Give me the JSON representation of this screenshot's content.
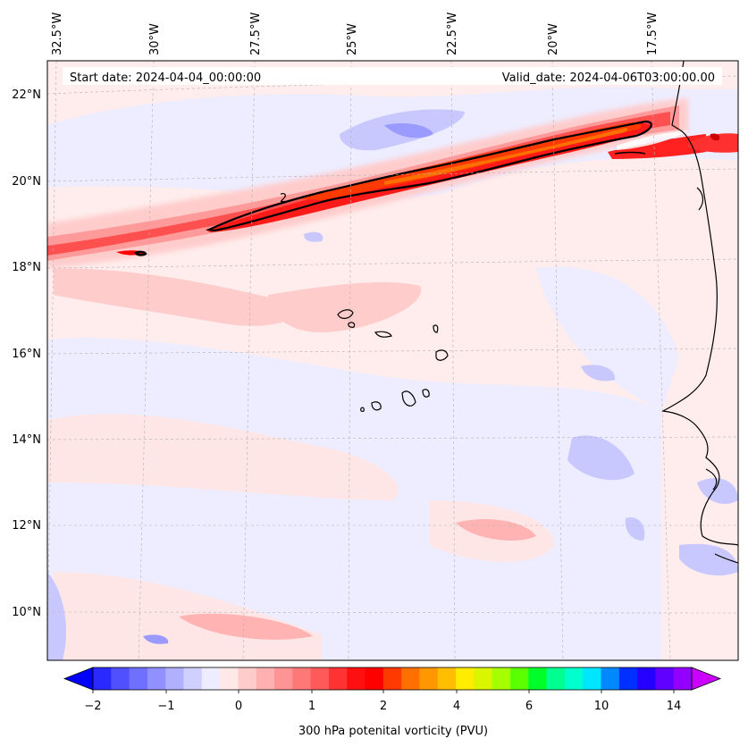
{
  "map": {
    "start_date": "Start date: 2024-04-04_00:00:00",
    "valid_date": "Valid_date: 2024-04-06T03:00:00.00",
    "contour_label": "2",
    "lon_labels": [
      "32.5°W",
      "30°W",
      "27.5°W",
      "25°W",
      "22.5°W",
      "20°W",
      "17.5°W"
    ],
    "lat_labels": [
      "22°N",
      "20°N",
      "18°N",
      "16°N",
      "14°N",
      "12°N",
      "10°N"
    ]
  },
  "colorbar": {
    "label": "300 hPa potenital vorticity (PVU)",
    "tick_labels": [
      "−2",
      "−1",
      "0",
      "1",
      "2",
      "4",
      "6",
      "10",
      "14"
    ],
    "colors": [
      "#0000ff",
      "#2a2aff",
      "#5050ff",
      "#7070ff",
      "#9090ff",
      "#b0b0ff",
      "#d0d0ff",
      "#ededff",
      "#ffe8e8",
      "#ffcccc",
      "#ffb0b0",
      "#ff9494",
      "#ff7878",
      "#ff5a5a",
      "#ff3333",
      "#ff1010",
      "#ff0000",
      "#ff3a00",
      "#ff7000",
      "#ff9800",
      "#ffbe00",
      "#ffec00",
      "#daf500",
      "#a6ff00",
      "#5cff00",
      "#00ff2a",
      "#00ff90",
      "#00ffcc",
      "#00e6ff",
      "#0088ff",
      "#0030ff",
      "#2600ff",
      "#6000ff",
      "#9400ff",
      "#cc00ff"
    ]
  }
}
